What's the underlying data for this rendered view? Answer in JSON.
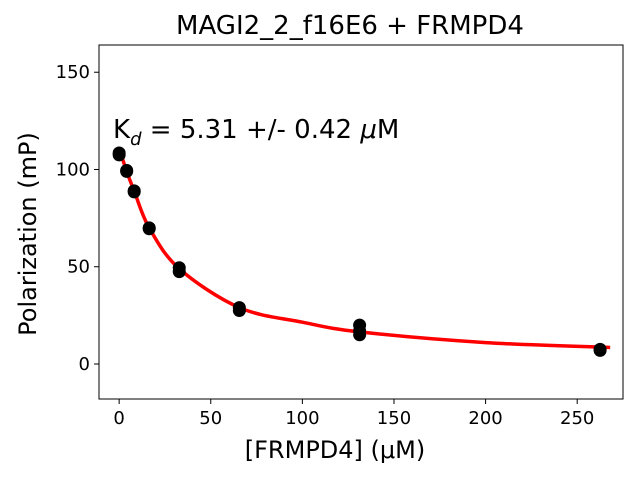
{
  "chart_data": {
    "type": "scatter",
    "title": "MAGI2_2_f16E6 + FRMPD4",
    "xlabel": "[FRMPD4] (μM)",
    "ylabel": "Polarization (mP)",
    "xlim": [
      -11,
      275
    ],
    "ylim": [
      -18,
      164
    ],
    "xticks": [
      0,
      50,
      100,
      150,
      200,
      250
    ],
    "yticks": [
      0,
      50,
      100,
      150
    ],
    "annotation": {
      "prefix": "K",
      "subscript": "d",
      "text": " = 5.31 +/- 0.42 ",
      "unit_symbol": "μ",
      "unit": "M"
    },
    "points": {
      "x": [
        0,
        0,
        4.1,
        4.1,
        8.2,
        8.2,
        16.4,
        16.4,
        32.8,
        32.8,
        65.6,
        65.6,
        131.25,
        131.25,
        131.25,
        262.5,
        262.5
      ],
      "y": [
        108.5,
        107.5,
        99.5,
        99,
        89,
        88.5,
        70,
        69.5,
        49.5,
        47.5,
        29,
        27.5,
        20,
        17,
        15,
        7.5,
        7
      ]
    },
    "fit": {
      "x_start": 0,
      "x_end": 268,
      "samples": [
        [
          0,
          111
        ],
        [
          4.1,
          99
        ],
        [
          8.2,
          89
        ],
        [
          16.4,
          70
        ],
        [
          32.8,
          49
        ],
        [
          65.6,
          29
        ],
        [
          100,
          21.5
        ],
        [
          131.25,
          16.5
        ],
        [
          200,
          11
        ],
        [
          268,
          8.5
        ]
      ]
    },
    "colors": {
      "points": "#000000",
      "fit": "#ff0000"
    },
    "grid": false,
    "legend": "none"
  }
}
